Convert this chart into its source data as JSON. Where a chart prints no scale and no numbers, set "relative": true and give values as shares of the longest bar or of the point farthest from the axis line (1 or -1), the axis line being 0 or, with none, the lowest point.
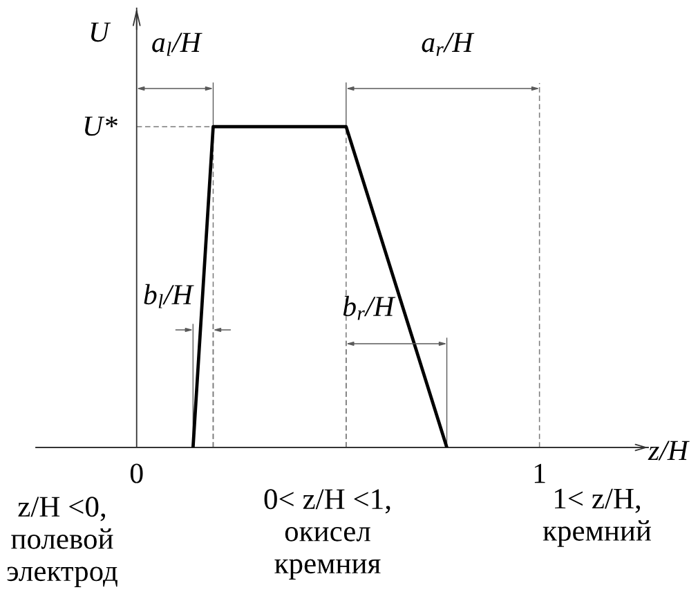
{
  "chart_data": {
    "type": "line",
    "xlabel": "z/H",
    "ylabel": "U",
    "relative": true,
    "xlim": [
      -0.25,
      1.27
    ],
    "xticks": [
      0,
      1
    ],
    "x": [
      0.14,
      0.19,
      0.52,
      0.77
    ],
    "series": [
      {
        "color": "#000000",
        "values": [
          0,
          1,
          1,
          0
        ]
      }
    ],
    "annotations": [
      "U*",
      "a$_{l}$/H",
      "a$_{r}$/H",
      "b$_{l}$/H",
      "b$_{r}$/H",
      "z/H <0,\nполевой\nэлектрод",
      "0< z/H <1,\nокисел\nкремния",
      "1< z/H,\nкремний"
    ]
  }
}
